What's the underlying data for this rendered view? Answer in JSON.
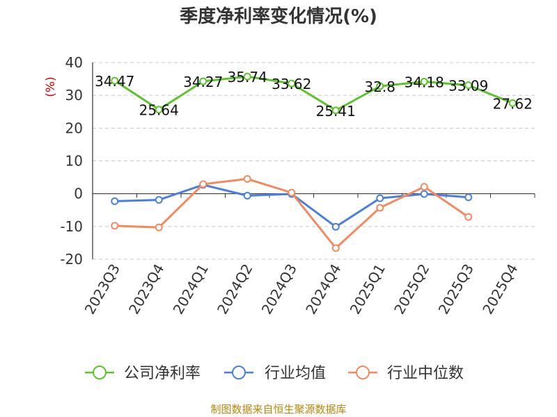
{
  "source_note": "制图数据来自恒生聚源数据库",
  "colors": {
    "company": "#5cc42b",
    "industry_avg": "#4a7fdc",
    "industry_median": "#f4895f"
  },
  "chart_data": {
    "type": "line",
    "title": "季度净利率变化情况(%)",
    "ylabel": "(%)",
    "xlabel": "",
    "ylim": [
      -20,
      40
    ],
    "yticks": [
      40,
      30,
      20,
      10,
      0,
      -10,
      -20
    ],
    "categories": [
      "2023Q3",
      "2023Q4",
      "2024Q1",
      "2024Q2",
      "2024Q3",
      "2024Q4",
      "2025Q1",
      "2025Q2",
      "2025Q3",
      "2025Q4"
    ],
    "grid": true,
    "legend_position": "bottom",
    "series": [
      {
        "name": "公司净利率",
        "values": [
          34.47,
          25.64,
          34.27,
          35.74,
          33.62,
          25.41,
          32.8,
          34.18,
          33.09,
          27.62
        ],
        "labels": [
          "34.47",
          "25.64",
          "34.27",
          "35.74",
          "33.62",
          "25.41",
          "32.8",
          "34.18",
          "33.09",
          "27.62"
        ]
      },
      {
        "name": "行业均值",
        "values": [
          -2.3,
          -1.9,
          2.7,
          -0.6,
          -0.1,
          -10.1,
          -1.4,
          -0.1,
          -1.1,
          null
        ]
      },
      {
        "name": "行业中位数",
        "values": [
          -9.8,
          -10.3,
          2.9,
          4.5,
          0.3,
          -16.6,
          -4.3,
          2.1,
          -7.1,
          null
        ]
      }
    ]
  }
}
